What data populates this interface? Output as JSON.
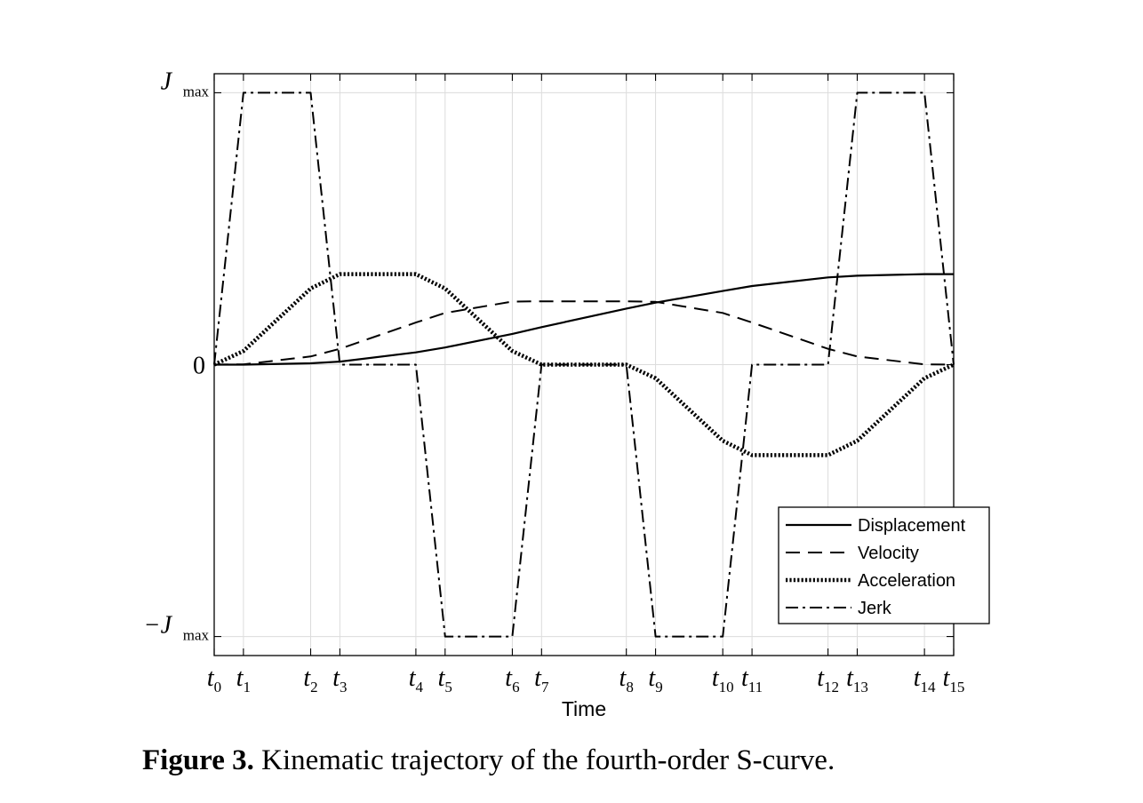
{
  "chart_data": {
    "type": "line",
    "xlabel": "Time",
    "ylabel": "",
    "x_ticks": [
      {
        "name": "t",
        "sub": "0",
        "x": 0
      },
      {
        "name": "t",
        "sub": "1",
        "x": 1
      },
      {
        "name": "t",
        "sub": "2",
        "x": 3.3
      },
      {
        "name": "t",
        "sub": "3",
        "x": 4.3
      },
      {
        "name": "t",
        "sub": "4",
        "x": 6.9
      },
      {
        "name": "t",
        "sub": "5",
        "x": 7.9
      },
      {
        "name": "t",
        "sub": "6",
        "x": 10.2
      },
      {
        "name": "t",
        "sub": "7",
        "x": 11.2
      },
      {
        "name": "t",
        "sub": "8",
        "x": 14.1
      },
      {
        "name": "t",
        "sub": "9",
        "x": 15.1
      },
      {
        "name": "t",
        "sub": "10",
        "x": 17.4
      },
      {
        "name": "t",
        "sub": "11",
        "x": 18.4
      },
      {
        "name": "t",
        "sub": "12",
        "x": 21
      },
      {
        "name": "t",
        "sub": "13",
        "x": 22
      },
      {
        "name": "t",
        "sub": "14",
        "x": 24.3
      },
      {
        "name": "t",
        "sub": "15",
        "x": 25.3
      }
    ],
    "y_ticks": [
      {
        "label": "J",
        "sub": "max",
        "y": 1
      },
      {
        "label": "0",
        "sub": "",
        "y": 0
      },
      {
        "label": "−J",
        "sub": "max",
        "y": -1
      }
    ],
    "xlim": [
      0,
      25.3
    ],
    "ylim": [
      -1.07,
      1.07
    ],
    "grid": true,
    "legend_position": "bottom-right",
    "series": [
      {
        "name": "Displacement",
        "dash": "solid",
        "x": [
          0,
          1,
          3.3,
          4.3,
          6.9,
          7.9,
          10.2,
          11.2,
          14.1,
          15.1,
          17.4,
          18.4,
          21,
          22,
          24.3,
          25.3
        ],
        "y": [
          0,
          0.0001,
          0.005,
          0.011,
          0.045,
          0.063,
          0.113,
          0.138,
          0.206,
          0.228,
          0.271,
          0.289,
          0.321,
          0.327,
          0.333,
          0.333
        ]
      },
      {
        "name": "Velocity",
        "dash": "dashed",
        "x": [
          0,
          1,
          3.3,
          4.3,
          6.9,
          7.9,
          10.2,
          11.2,
          14.1,
          15.1,
          17.4,
          18.4,
          21,
          22,
          24.3,
          25.3
        ],
        "y": [
          0,
          0.001,
          0.03,
          0.058,
          0.155,
          0.19,
          0.232,
          0.233,
          0.233,
          0.231,
          0.19,
          0.155,
          0.058,
          0.03,
          0.001,
          0
        ]
      },
      {
        "name": "Acceleration",
        "dash": "dotted",
        "x": [
          0,
          1,
          3.3,
          4.3,
          6.9,
          7.9,
          10.2,
          11.2,
          14.1,
          15.1,
          17.4,
          18.4,
          21,
          22,
          24.3,
          25.3
        ],
        "y": [
          0,
          0.05,
          0.28,
          0.333,
          0.333,
          0.28,
          0.05,
          0,
          0,
          -0.05,
          -0.28,
          -0.333,
          -0.333,
          -0.28,
          -0.05,
          0
        ]
      },
      {
        "name": "Jerk",
        "dash": "dashdot",
        "x": [
          0,
          1,
          3.3,
          4.3,
          6.9,
          7.9,
          10.2,
          11.2,
          14.1,
          15.1,
          17.4,
          18.4,
          21,
          22,
          24.3,
          25.3
        ],
        "y": [
          0,
          1,
          1,
          0,
          0,
          -1,
          -1,
          0,
          0,
          -1,
          -1,
          0,
          0,
          1,
          1,
          0
        ]
      }
    ]
  },
  "caption": {
    "label": "Figure 3.",
    "text": " Kinematic trajectory of the fourth-order S-curve."
  }
}
